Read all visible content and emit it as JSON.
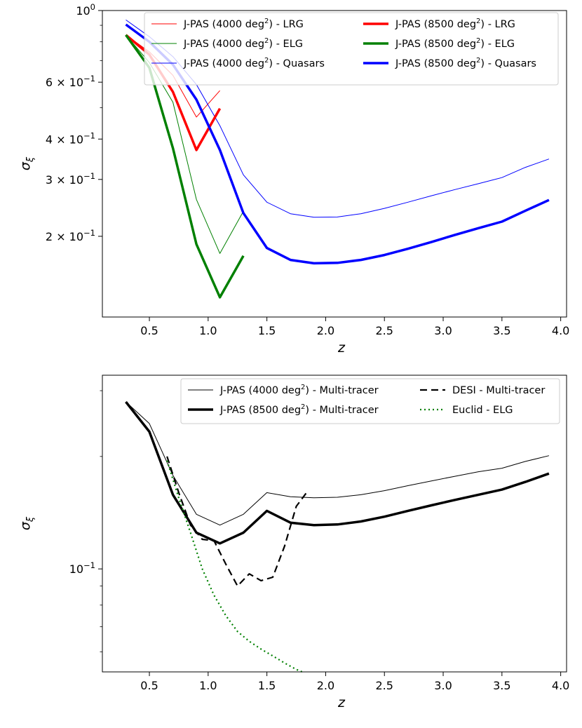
{
  "chart_data": [
    {
      "type": "line",
      "yscale": "log",
      "xlabel": "z",
      "ylabel": "σξ",
      "xlim": [
        0.1,
        4.05
      ],
      "ylim": [
        0.1125,
        1.0
      ],
      "xticks": [
        {
          "value": 0.5,
          "label": "0.5"
        },
        {
          "value": 1.0,
          "label": "1.0"
        },
        {
          "value": 1.5,
          "label": "1.5"
        },
        {
          "value": 2.0,
          "label": "2.0"
        },
        {
          "value": 2.5,
          "label": "2.5"
        },
        {
          "value": 3.0,
          "label": "3.0"
        },
        {
          "value": 3.5,
          "label": "3.5"
        },
        {
          "value": 4.0,
          "label": "4.0"
        }
      ],
      "yticks": [
        {
          "value": 1.0,
          "label": "10",
          "sup": "0"
        },
        {
          "value": 0.6,
          "label": "6 × 10",
          "sup": "−1"
        },
        {
          "value": 0.4,
          "label": "4 × 10",
          "sup": "−1"
        },
        {
          "value": 0.3,
          "label": "3 × 10",
          "sup": "−1"
        },
        {
          "value": 0.2,
          "label": "2 × 10",
          "sup": "−1"
        }
      ],
      "minor_yticks": [
        0.5,
        0.7,
        0.8,
        0.9
      ],
      "legend_position": "top-right",
      "series": [
        {
          "name": "J-PAS (4000 deg²) - LRG",
          "legend_text": "J-PAS (4000 deg",
          "legend_sup": "2",
          "legend_suffix": ") - LRG",
          "color": "#ff0000",
          "width": 1,
          "dash": "none",
          "x": [
            0.3,
            0.5,
            0.7,
            0.9,
            1.1
          ],
          "y": [
            0.84,
            0.745,
            0.63,
            0.468,
            0.565
          ]
        },
        {
          "name": "J-PAS (4000 deg²) - ELG",
          "legend_text": "J-PAS (4000 deg",
          "legend_sup": "2",
          "legend_suffix": ") - ELG",
          "color": "#008000",
          "width": 1,
          "dash": "none",
          "x": [
            0.3,
            0.5,
            0.7,
            0.9,
            1.1,
            1.3
          ],
          "y": [
            0.84,
            0.69,
            0.52,
            0.26,
            0.177,
            0.239
          ]
        },
        {
          "name": "J-PAS (4000 deg²) - Quasars",
          "legend_text": "J-PAS (4000 deg",
          "legend_sup": "2",
          "legend_suffix": ") - Quasars",
          "color": "#0000ff",
          "width": 1,
          "dash": "none",
          "x": [
            0.3,
            0.5,
            0.7,
            0.9,
            1.1,
            1.3,
            1.5,
            1.7,
            1.9,
            2.1,
            2.3,
            2.5,
            2.7,
            2.9,
            3.1,
            3.3,
            3.5,
            3.7,
            3.9
          ],
          "y": [
            0.935,
            0.83,
            0.72,
            0.59,
            0.44,
            0.31,
            0.255,
            0.235,
            0.229,
            0.2295,
            0.235,
            0.244,
            0.255,
            0.267,
            0.279,
            0.291,
            0.304,
            0.327,
            0.347
          ]
        },
        {
          "name": "J-PAS (8500 deg²) - LRG",
          "legend_text": "J-PAS (8500 deg",
          "legend_sup": "2",
          "legend_suffix": ") - LRG",
          "color": "#ff0000",
          "width": 3.5,
          "dash": "none",
          "x": [
            0.3,
            0.5,
            0.7,
            0.9,
            1.1
          ],
          "y": [
            0.84,
            0.73,
            0.56,
            0.37,
            0.497
          ]
        },
        {
          "name": "J-PAS (8500 deg²) - ELG",
          "legend_text": "J-PAS (8500 deg",
          "legend_sup": "2",
          "legend_suffix": ") - ELG",
          "color": "#008000",
          "width": 3.5,
          "dash": "none",
          "x": [
            0.3,
            0.5,
            0.7,
            0.9,
            1.1,
            1.3
          ],
          "y": [
            0.84,
            0.665,
            0.375,
            0.189,
            0.1295,
            0.174
          ]
        },
        {
          "name": "J-PAS (8500 deg²) - Quasars",
          "legend_text": "J-PAS (8500 deg",
          "legend_sup": "2",
          "legend_suffix": ") - Quasars",
          "color": "#0000ff",
          "width": 3.5,
          "dash": "none",
          "x": [
            0.3,
            0.5,
            0.7,
            0.9,
            1.1,
            1.3,
            1.5,
            1.7,
            1.9,
            2.1,
            2.3,
            2.5,
            2.7,
            2.9,
            3.1,
            3.3,
            3.5,
            3.7,
            3.9
          ],
          "y": [
            0.905,
            0.8,
            0.68,
            0.53,
            0.37,
            0.236,
            0.184,
            0.169,
            0.165,
            0.1655,
            0.169,
            0.175,
            0.183,
            0.192,
            0.202,
            0.212,
            0.222,
            0.24,
            0.259
          ]
        }
      ]
    },
    {
      "type": "line",
      "yscale": "log",
      "xlabel": "z",
      "ylabel": "σξ",
      "xlim": [
        0.1,
        4.05
      ],
      "ylim": [
        0.053,
        0.33
      ],
      "xticks": [
        {
          "value": 0.5,
          "label": "0.5"
        },
        {
          "value": 1.0,
          "label": "1.0"
        },
        {
          "value": 1.5,
          "label": "1.5"
        },
        {
          "value": 2.0,
          "label": "2.0"
        },
        {
          "value": 2.5,
          "label": "2.5"
        },
        {
          "value": 3.0,
          "label": "3.0"
        },
        {
          "value": 3.5,
          "label": "3.5"
        },
        {
          "value": 4.0,
          "label": "4.0"
        }
      ],
      "yticks": [
        {
          "value": 0.1,
          "label": "10",
          "sup": "−1"
        }
      ],
      "minor_yticks": [
        0.06,
        0.07,
        0.08,
        0.09,
        0.2,
        0.3
      ],
      "legend_position": "top-right",
      "series": [
        {
          "name": "J-PAS (4000 deg²) - Multi-tracer",
          "legend_text": "J-PAS (4000 deg",
          "legend_sup": "2",
          "legend_suffix": ") - Multi-tracer",
          "color": "#000000",
          "width": 1,
          "dash": "none",
          "x": [
            0.3,
            0.5,
            0.7,
            0.9,
            1.1,
            1.3,
            1.5,
            1.7,
            1.9,
            2.1,
            2.3,
            2.5,
            2.7,
            2.9,
            3.1,
            3.3,
            3.5,
            3.7,
            3.9
          ],
          "y": [
            0.28,
            0.245,
            0.178,
            0.14,
            0.131,
            0.14,
            0.16,
            0.156,
            0.155,
            0.1555,
            0.158,
            0.162,
            0.167,
            0.172,
            0.177,
            0.182,
            0.186,
            0.194,
            0.201
          ]
        },
        {
          "name": "J-PAS (8500 deg²) - Multi-tracer",
          "legend_text": "J-PAS (8500 deg",
          "legend_sup": "2",
          "legend_suffix": ") - Multi-tracer",
          "color": "#000000",
          "width": 3.5,
          "dash": "none",
          "x": [
            0.3,
            0.5,
            0.7,
            0.9,
            1.1,
            1.3,
            1.5,
            1.7,
            1.9,
            2.1,
            2.3,
            2.5,
            2.7,
            2.9,
            3.1,
            3.3,
            3.5,
            3.7,
            3.9
          ],
          "y": [
            0.28,
            0.233,
            0.158,
            0.125,
            0.117,
            0.125,
            0.143,
            0.133,
            0.131,
            0.1315,
            0.134,
            0.138,
            0.143,
            0.148,
            0.153,
            0.158,
            0.163,
            0.171,
            0.18
          ]
        },
        {
          "name": "DESI - Multi-tracer",
          "legend_text": "DESI - Multi-tracer",
          "legend_sup": "",
          "legend_suffix": "",
          "color": "#000000",
          "width": 2.2,
          "dash": "10,6",
          "x": [
            0.65,
            0.75,
            0.85,
            0.95,
            1.05,
            1.15,
            1.25,
            1.35,
            1.45,
            1.55,
            1.65,
            1.75,
            1.85
          ],
          "y": [
            0.2,
            0.16,
            0.131,
            0.12,
            0.119,
            0.103,
            0.09,
            0.097,
            0.093,
            0.095,
            0.115,
            0.147,
            0.162
          ]
        },
        {
          "name": "Euclid - ELG",
          "legend_text": "Euclid - ELG",
          "legend_sup": "",
          "legend_suffix": "",
          "color": "#008000",
          "width": 2.2,
          "dash": "2,4",
          "x": [
            0.65,
            0.75,
            0.85,
            0.95,
            1.05,
            1.15,
            1.25,
            1.35,
            1.45,
            1.55,
            1.65,
            1.75,
            1.8
          ],
          "y": [
            0.195,
            0.155,
            0.125,
            0.1,
            0.085,
            0.075,
            0.068,
            0.064,
            0.061,
            0.0585,
            0.056,
            0.0538,
            0.053
          ]
        }
      ]
    }
  ]
}
